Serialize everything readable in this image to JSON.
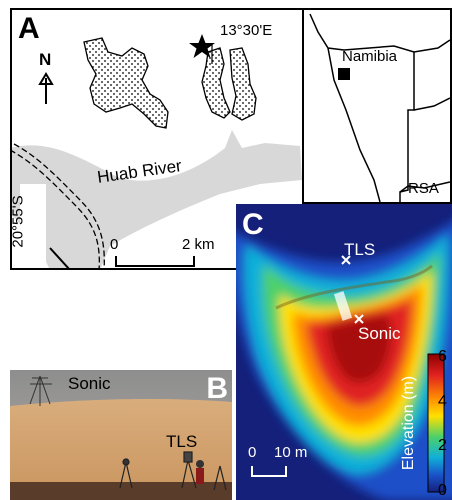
{
  "panel_a": {
    "label": "A",
    "north_label": "N",
    "longitude_label": "13°30'E",
    "latitude_label": "20°55'S",
    "river_label": "Huab River",
    "scale_start": "0",
    "scale_end": "2 km"
  },
  "inset": {
    "country_label": "Namibia",
    "neighbor_label": "RSA"
  },
  "panel_b": {
    "label": "B",
    "sonic_label": "Sonic",
    "tls_label": "TLS"
  },
  "panel_c": {
    "label": "C",
    "tls_label": "TLS",
    "sonic_label": "Sonic",
    "scale_start": "0",
    "scale_end": "10 m",
    "colorbar_title": "Elevation (m)",
    "colorbar_ticks": [
      "6",
      "4",
      "2",
      "0"
    ],
    "colorbar_colors": [
      "#8b0000",
      "#e02020",
      "#ff8c00",
      "#ffe000",
      "#4dd06a",
      "#10b0d8",
      "#1a50c8",
      "#14207a"
    ]
  },
  "colors": {
    "river": "#d8d8d8",
    "dune_stipple": "#000000",
    "sand": "#cfa271",
    "sky": "#9a9a9a"
  }
}
